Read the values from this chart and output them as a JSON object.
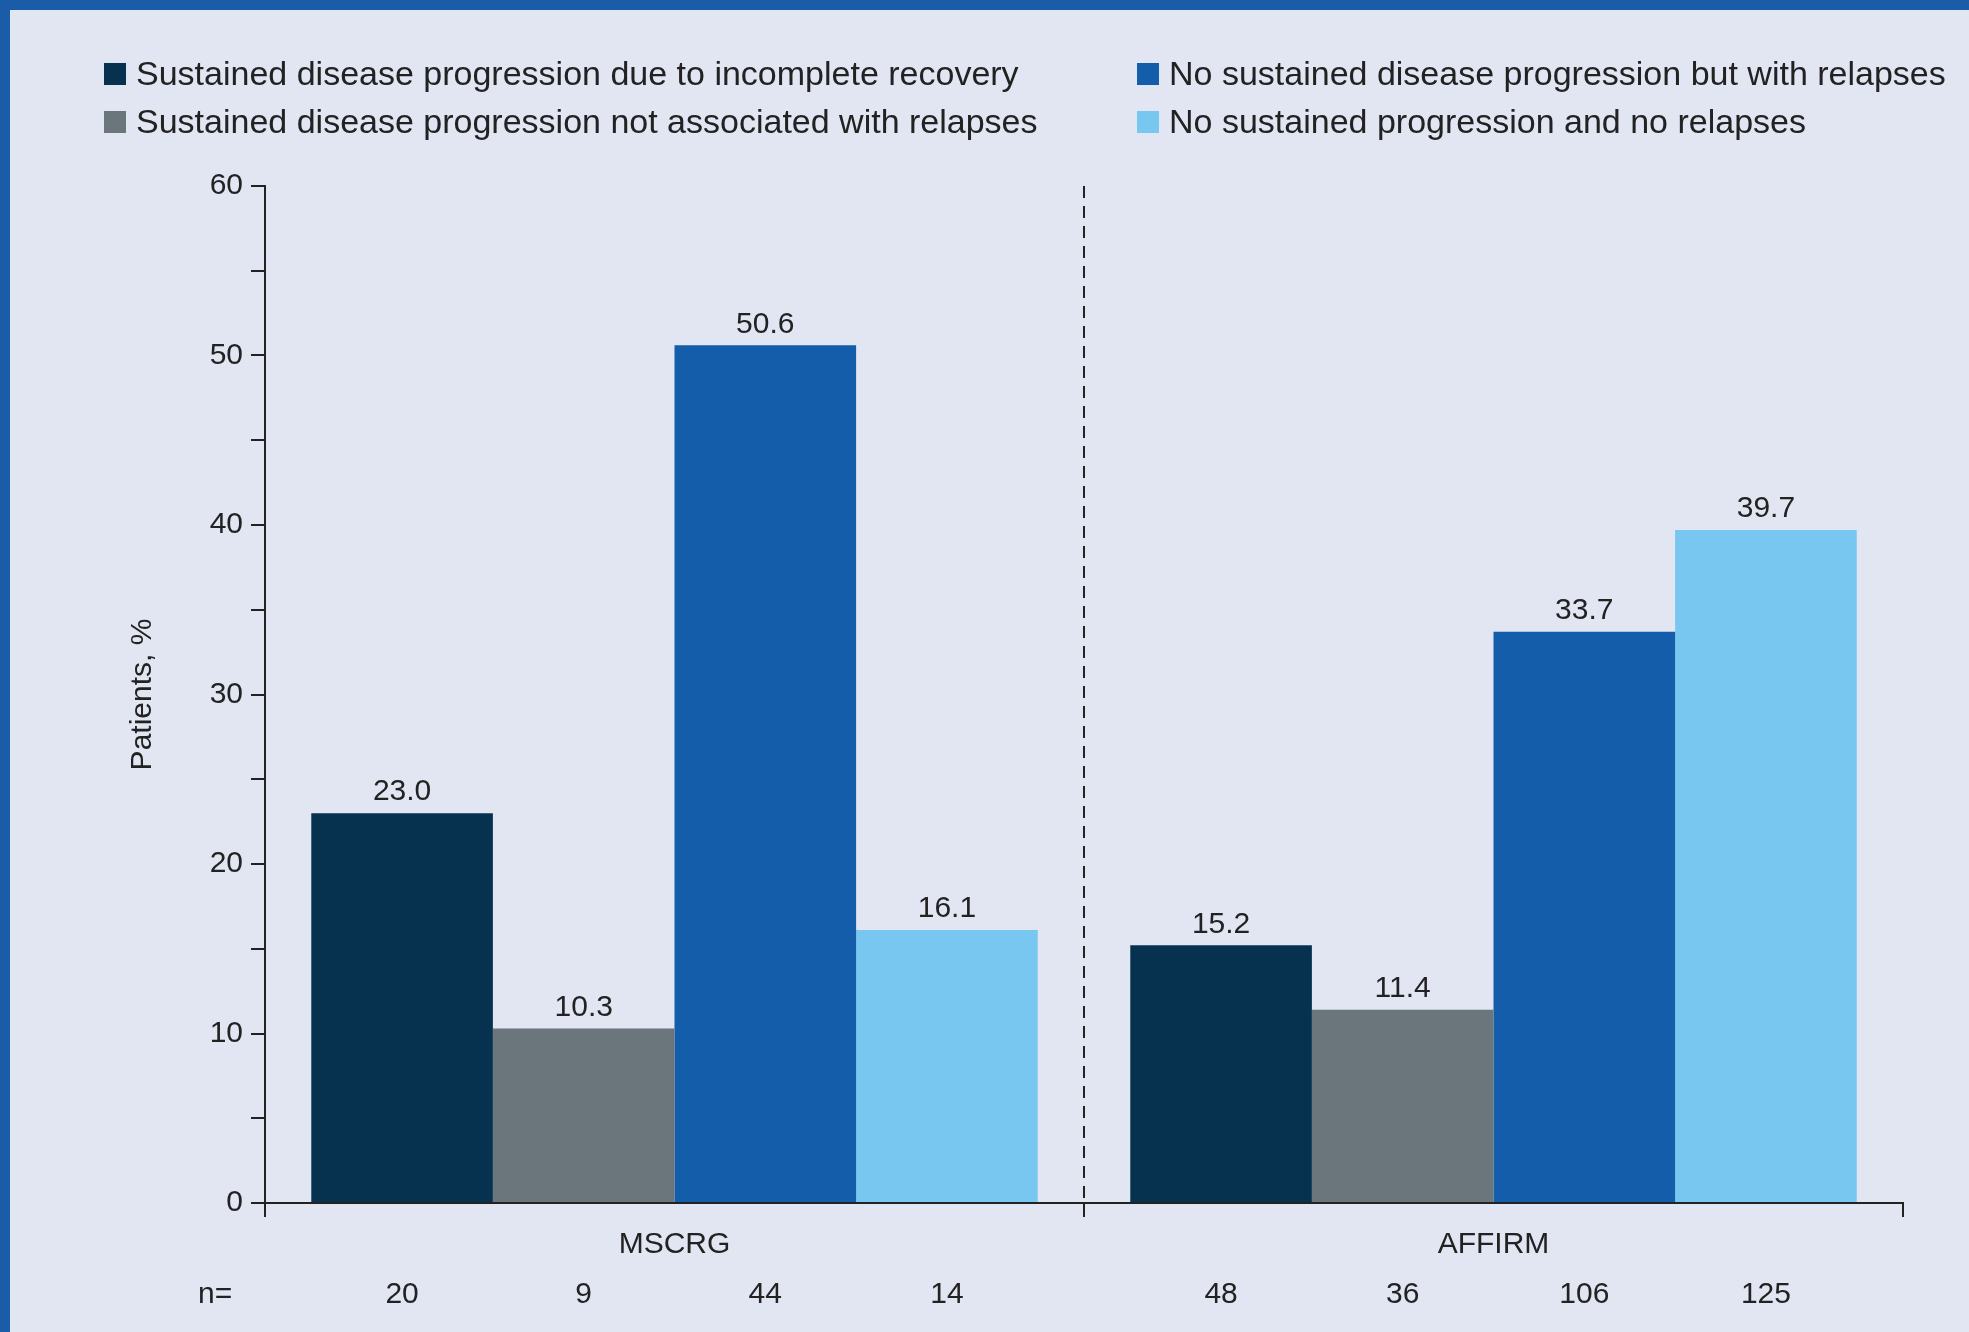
{
  "chart_data": {
    "type": "bar",
    "ylabel": "Patients, %",
    "categories": [
      "MSCRG",
      "AFFIRM"
    ],
    "series": [
      {
        "name": "Sustained disease progression due to incomplete recovery",
        "color": "#06324f",
        "values": [
          23.0,
          15.2
        ],
        "value_labels": [
          "23.0",
          "15.2"
        ]
      },
      {
        "name": "Sustained disease progression not associated with relapses",
        "color": "#6b757c",
        "values": [
          10.3,
          11.4
        ],
        "value_labels": [
          "10.3",
          "11.4"
        ]
      },
      {
        "name": "No sustained disease progression but with relapses",
        "color": "#135dab",
        "values": [
          50.6,
          33.7
        ],
        "value_labels": [
          "50.6",
          "33.7"
        ]
      },
      {
        "name": "No sustained progression and no relapses",
        "color": "#77c7f0",
        "values": [
          16.1,
          39.7
        ],
        "value_labels": [
          "16.1",
          "39.7"
        ]
      }
    ],
    "ylim": [
      0,
      60
    ],
    "yticks": [
      0,
      {
        "value": 5,
        "label": null
      },
      10,
      {
        "value": 15,
        "label": null
      },
      20,
      {
        "value": 25,
        "label": null
      },
      30,
      {
        "value": 35,
        "label": null
      },
      40,
      {
        "value": 45,
        "label": null
      },
      50,
      {
        "value": 55,
        "label": null
      },
      60
    ],
    "grid": "x",
    "legend": "top",
    "annotations": [
      "n=",
      "20",
      "9",
      "44",
      "14",
      "48",
      "36",
      "106",
      "125"
    ]
  }
}
